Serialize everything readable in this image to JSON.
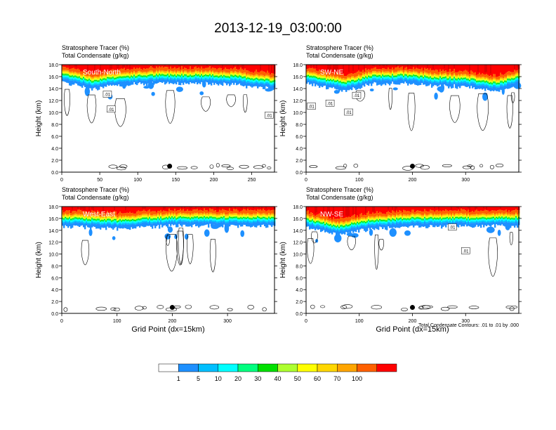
{
  "title": "2013-12-19_03:00:00",
  "panel_titles": {
    "tracer": "Stratosphere Tracer   (%)",
    "condensate": "Total Condensate   (g/kg)"
  },
  "ylabel": "Height (km)",
  "xlabel": "Grid Point (dx=15km)",
  "contour_note": "Total Condensate Contours: .01 to .01 by .000",
  "contour_label": ".01",
  "colors": {
    "levels": [
      "#ffffff",
      "#1e90ff",
      "#00bfff",
      "#00ffff",
      "#00ff7f",
      "#00e000",
      "#adff2f",
      "#ffff00",
      "#ffd700",
      "#ffa500",
      "#ff6000",
      "#ff0000"
    ],
    "contour": "#000000",
    "marker": "#000000"
  },
  "colorbar": {
    "labels": [
      "1",
      "5",
      "10",
      "20",
      "30",
      "40",
      "50",
      "60",
      "70",
      "100"
    ]
  },
  "chart_data": [
    {
      "type": "heatmap",
      "section": "South-North",
      "xlim": [
        0,
        280
      ],
      "ylim": [
        0,
        18
      ],
      "xticks": [
        0,
        50,
        100,
        150,
        200,
        250
      ],
      "yticks": [
        "0.0",
        "2.0",
        "4.0",
        "6.0",
        "8.0",
        "10.0",
        "12.0",
        "14.0",
        "16.0",
        "18.0"
      ],
      "marker": {
        "x": 142,
        "y": 1.0
      },
      "tropopause_km": [
        [
          0,
          16.2
        ],
        [
          20,
          15.8
        ],
        [
          40,
          15.0
        ],
        [
          60,
          15.5
        ],
        [
          90,
          15.8
        ],
        [
          130,
          16.0
        ],
        [
          180,
          16.0
        ],
        [
          230,
          15.8
        ],
        [
          260,
          15.3
        ],
        [
          280,
          15.0
        ]
      ],
      "contour_labels": [
        {
          "x": 60,
          "y": 13.0
        },
        {
          "x": 65,
          "y": 10.5
        },
        {
          "x": 273,
          "y": 9.5
        }
      ]
    },
    {
      "type": "heatmap",
      "section": "SW-NE",
      "xlim": [
        0,
        400
      ],
      "ylim": [
        0,
        18
      ],
      "xticks": [
        0,
        100,
        200,
        300
      ],
      "yticks": [
        "0.0",
        "2.0",
        "4.0",
        "6.0",
        "8.0",
        "10.0",
        "12.0",
        "14.0",
        "16.0",
        "18.0"
      ],
      "marker": {
        "x": 200,
        "y": 1.0
      },
      "tropopause_km": [
        [
          0,
          16.0
        ],
        [
          40,
          15.2
        ],
        [
          80,
          14.8
        ],
        [
          120,
          15.8
        ],
        [
          180,
          16.0
        ],
        [
          240,
          15.6
        ],
        [
          300,
          15.4
        ],
        [
          360,
          14.6
        ],
        [
          400,
          15.8
        ]
      ],
      "contour_labels": [
        {
          "x": 10,
          "y": 11.0
        },
        {
          "x": 45,
          "y": 11.5
        },
        {
          "x": 80,
          "y": 10.0
        },
        {
          "x": 95,
          "y": 12.8
        }
      ]
    },
    {
      "type": "heatmap",
      "section": "West-East",
      "xlim": [
        0,
        385
      ],
      "ylim": [
        0,
        18
      ],
      "xticks": [
        0,
        100,
        200,
        300
      ],
      "yticks": [
        "0.0",
        "2.0",
        "4.0",
        "6.0",
        "8.0",
        "10.0",
        "12.0",
        "14.0",
        "16.0",
        "18.0"
      ],
      "marker": {
        "x": 200,
        "y": 1.0
      },
      "tropopause_km": [
        [
          0,
          15.8
        ],
        [
          60,
          15.6
        ],
        [
          100,
          15.4
        ],
        [
          160,
          15.8
        ],
        [
          220,
          15.9
        ],
        [
          300,
          15.9
        ],
        [
          385,
          15.9
        ]
      ],
      "contour_labels": []
    },
    {
      "type": "heatmap",
      "section": "NW-SE",
      "xlim": [
        0,
        400
      ],
      "ylim": [
        0,
        18
      ],
      "xticks": [
        0,
        100,
        200,
        300
      ],
      "yticks": [
        "0.0",
        "2.0",
        "4.0",
        "6.0",
        "8.0",
        "10.0",
        "12.0",
        "14.0",
        "16.0",
        "18.0"
      ],
      "marker": {
        "x": 200,
        "y": 1.0
      },
      "tropopause_km": [
        [
          0,
          15.6
        ],
        [
          60,
          14.4
        ],
        [
          120,
          15.4
        ],
        [
          200,
          15.8
        ],
        [
          280,
          15.8
        ],
        [
          340,
          15.8
        ],
        [
          400,
          15.9
        ]
      ],
      "contour_labels": [
        {
          "x": 275,
          "y": 14.5
        },
        {
          "x": 300,
          "y": 10.5
        }
      ]
    }
  ]
}
